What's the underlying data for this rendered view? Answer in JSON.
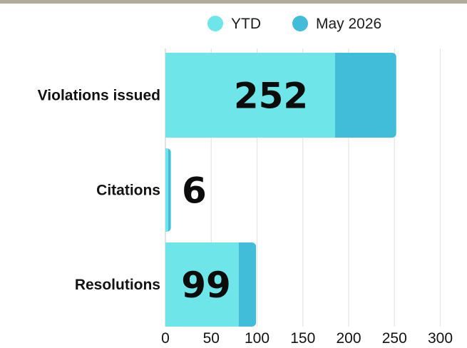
{
  "chart_data": {
    "type": "bar",
    "orientation": "horizontal",
    "stacked": true,
    "categories": [
      "Violations issued",
      "Citations",
      "Resolutions"
    ],
    "series": [
      {
        "name": "YTD",
        "values": [
          185,
          3,
          80
        ],
        "color": "#6ee6e9"
      },
      {
        "name": "May 2026",
        "values": [
          67,
          3,
          19
        ],
        "color": "#41bcd9"
      }
    ],
    "totals": [
      "252",
      "6",
      "99"
    ],
    "x_ticks": [
      "0",
      "50",
      "100",
      "150",
      "200",
      "250",
      "300"
    ],
    "xlim": [
      0,
      300
    ],
    "title": "",
    "xlabel": "",
    "ylabel": "",
    "grid": "vertical",
    "legend": "top-right"
  }
}
